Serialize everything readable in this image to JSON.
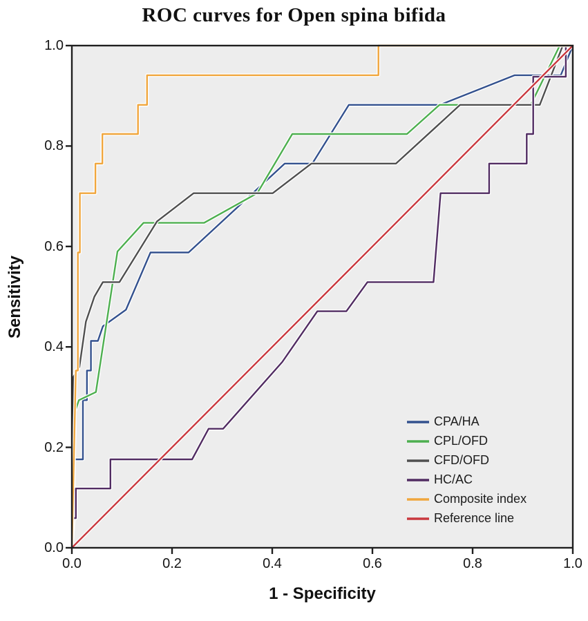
{
  "figure": {
    "type_note": "ROC plot (SPSS style)"
  },
  "chart_data": {
    "type": "line",
    "title": "ROC curves for Open spina bifida",
    "xlabel": "1 - Specificity",
    "ylabel": "Sensitivity",
    "xlim": [
      0,
      1
    ],
    "ylim": [
      0,
      1
    ],
    "xticks": [
      0,
      0.2,
      0.4,
      0.6,
      0.8,
      1
    ],
    "xtick_labels": [
      "0.0",
      "0.2",
      "0.4",
      "0.6",
      "0.8",
      "1.0"
    ],
    "yticks": [
      0,
      0.2,
      0.4,
      0.6,
      0.8,
      1
    ],
    "ytick_labels": [
      "0.0",
      "0.2",
      "0.4",
      "0.6",
      "0.8",
      "1.0"
    ],
    "grid": false,
    "plot_background": "#ededed",
    "frame_color": "#1f1f1f",
    "legend_position": "lower right",
    "series": [
      {
        "name": "CPA/HA",
        "slug": "cpa-ha",
        "color": "#33518e",
        "points": [
          [
            0,
            0
          ],
          [
            0.004,
            0.059
          ],
          [
            0.004,
            0.176
          ],
          [
            0.022,
            0.176
          ],
          [
            0.022,
            0.294
          ],
          [
            0.03,
            0.294
          ],
          [
            0.03,
            0.353
          ],
          [
            0.038,
            0.353
          ],
          [
            0.038,
            0.412
          ],
          [
            0.052,
            0.412
          ],
          [
            0.062,
            0.441
          ],
          [
            0.108,
            0.474
          ],
          [
            0.157,
            0.588
          ],
          [
            0.233,
            0.588
          ],
          [
            0.425,
            0.765
          ],
          [
            0.48,
            0.765
          ],
          [
            0.553,
            0.882
          ],
          [
            0.735,
            0.882
          ],
          [
            0.884,
            0.941
          ],
          [
            0.976,
            0.941
          ],
          [
            1,
            1
          ]
        ]
      },
      {
        "name": "CPL/OFD",
        "slug": "cpl-ofd",
        "color": "#4daf4f",
        "points": [
          [
            0,
            0
          ],
          [
            0.006,
            0.235
          ],
          [
            0.006,
            0.27
          ],
          [
            0.014,
            0.294
          ],
          [
            0.048,
            0.31
          ],
          [
            0.091,
            0.59
          ],
          [
            0.143,
            0.647
          ],
          [
            0.264,
            0.647
          ],
          [
            0.37,
            0.706
          ],
          [
            0.44,
            0.824
          ],
          [
            0.669,
            0.824
          ],
          [
            0.734,
            0.882
          ],
          [
            0.916,
            0.882
          ],
          [
            0.974,
            1
          ],
          [
            1,
            1
          ]
        ]
      },
      {
        "name": "CFD/OFD",
        "slug": "cfd-ofd",
        "color": "#4f4f4f",
        "points": [
          [
            0,
            0
          ],
          [
            0.003,
            0.235
          ],
          [
            0.003,
            0.34
          ],
          [
            0.015,
            0.36
          ],
          [
            0.028,
            0.45
          ],
          [
            0.045,
            0.5
          ],
          [
            0.062,
            0.529
          ],
          [
            0.095,
            0.529
          ],
          [
            0.17,
            0.65
          ],
          [
            0.243,
            0.706
          ],
          [
            0.401,
            0.706
          ],
          [
            0.478,
            0.765
          ],
          [
            0.647,
            0.765
          ],
          [
            0.775,
            0.882
          ],
          [
            0.934,
            0.882
          ],
          [
            0.98,
            1
          ],
          [
            1,
            1
          ]
        ]
      },
      {
        "name": "HC/AC",
        "slug": "hc-ac",
        "color": "#512c62",
        "points": [
          [
            0,
            0
          ],
          [
            0.003,
            0.059
          ],
          [
            0.008,
            0.059
          ],
          [
            0.008,
            0.118
          ],
          [
            0.077,
            0.118
          ],
          [
            0.077,
            0.176
          ],
          [
            0.24,
            0.176
          ],
          [
            0.273,
            0.237
          ],
          [
            0.302,
            0.237
          ],
          [
            0.42,
            0.37
          ],
          [
            0.49,
            0.471
          ],
          [
            0.548,
            0.471
          ],
          [
            0.59,
            0.529
          ],
          [
            0.722,
            0.529
          ],
          [
            0.736,
            0.706
          ],
          [
            0.833,
            0.706
          ],
          [
            0.833,
            0.765
          ],
          [
            0.908,
            0.765
          ],
          [
            0.908,
            0.824
          ],
          [
            0.921,
            0.824
          ],
          [
            0.921,
            0.938
          ],
          [
            0.986,
            0.938
          ],
          [
            0.986,
            1
          ],
          [
            1,
            1
          ]
        ]
      },
      {
        "name": "Composite index",
        "slug": "composite-index",
        "color": "#f0a63d",
        "points": [
          [
            0,
            0
          ],
          [
            0.008,
            0.353
          ],
          [
            0.012,
            0.353
          ],
          [
            0.012,
            0.588
          ],
          [
            0.016,
            0.588
          ],
          [
            0.016,
            0.706
          ],
          [
            0.047,
            0.706
          ],
          [
            0.047,
            0.765
          ],
          [
            0.061,
            0.765
          ],
          [
            0.061,
            0.824
          ],
          [
            0.132,
            0.824
          ],
          [
            0.132,
            0.882
          ],
          [
            0.15,
            0.882
          ],
          [
            0.15,
            0.941
          ],
          [
            0.612,
            0.941
          ],
          [
            0.612,
            1
          ],
          [
            1,
            1
          ]
        ]
      },
      {
        "name": "Reference line",
        "slug": "reference-line",
        "color": "#c9383e",
        "points": [
          [
            0,
            0
          ],
          [
            1,
            1
          ]
        ]
      }
    ]
  }
}
